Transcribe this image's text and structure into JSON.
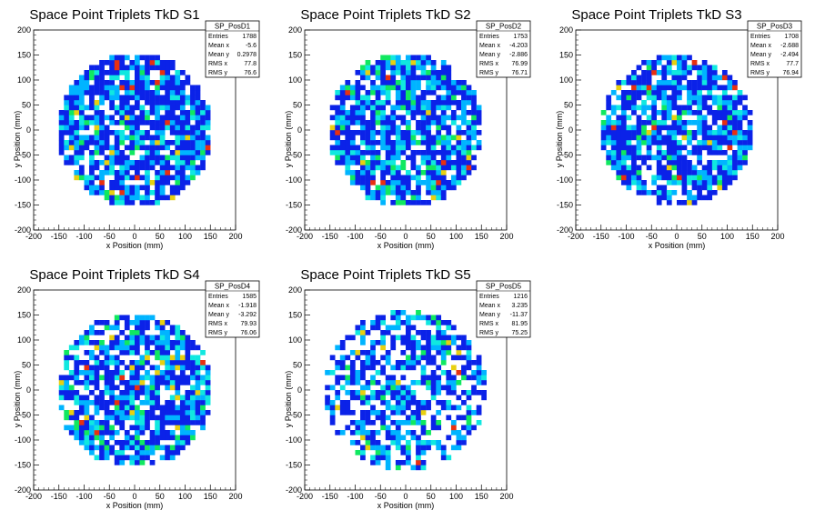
{
  "palette": [
    "#0b22e8",
    "#00b4ff",
    "#10e8e0",
    "#10e860",
    "#e8d010",
    "#e83010"
  ],
  "chart_data": [
    {
      "type": "heatmap",
      "title": "Space Point Triplets TkD S1",
      "xlabel": "x Position (mm)",
      "ylabel": "y Position (mm)",
      "xlim": [
        -200,
        200
      ],
      "ylim": [
        -200,
        200
      ],
      "xticks": [
        -200,
        -150,
        -100,
        -50,
        0,
        50,
        100,
        150,
        200
      ],
      "yticks": [
        -200,
        -150,
        -100,
        -50,
        0,
        50,
        100,
        150,
        200
      ],
      "bin_width_mm": 10,
      "region_radius_mm": 155,
      "fill_fraction": 0.82,
      "stats": {
        "name": "SP_PosD1",
        "rows": [
          {
            "label": "Entries",
            "value": "1788"
          },
          {
            "label": "Mean x",
            "value": "-5.6"
          },
          {
            "label": "Mean y",
            "value": "0.2978"
          },
          {
            "label": "RMS x",
            "value": "77.8"
          },
          {
            "label": "RMS y",
            "value": "76.6"
          }
        ]
      }
    },
    {
      "type": "heatmap",
      "title": "Space Point Triplets TkD S2",
      "xlabel": "x Position (mm)",
      "ylabel": "y Position (mm)",
      "xlim": [
        -200,
        200
      ],
      "ylim": [
        -200,
        200
      ],
      "xticks": [
        -200,
        -150,
        -100,
        -50,
        0,
        50,
        100,
        150,
        200
      ],
      "yticks": [
        -200,
        -150,
        -100,
        -50,
        0,
        50,
        100,
        150,
        200
      ],
      "bin_width_mm": 10,
      "region_radius_mm": 155,
      "fill_fraction": 0.82,
      "stats": {
        "name": "SP_PosD2",
        "rows": [
          {
            "label": "Entries",
            "value": "1753"
          },
          {
            "label": "Mean x",
            "value": "-4.203"
          },
          {
            "label": "Mean y",
            "value": "-2.886"
          },
          {
            "label": "RMS x",
            "value": "76.99"
          },
          {
            "label": "RMS y",
            "value": "76.71"
          }
        ]
      }
    },
    {
      "type": "heatmap",
      "title": "Space Point Triplets TkD S3",
      "xlabel": "x Position (mm)",
      "ylabel": "y Position (mm)",
      "xlim": [
        -200,
        200
      ],
      "ylim": [
        -200,
        200
      ],
      "xticks": [
        -200,
        -150,
        -100,
        -50,
        0,
        50,
        100,
        150,
        200
      ],
      "yticks": [
        -200,
        -150,
        -100,
        -50,
        0,
        50,
        100,
        150,
        200
      ],
      "bin_width_mm": 10,
      "region_radius_mm": 150,
      "fill_fraction": 0.8,
      "stats": {
        "name": "SP_PosD3",
        "rows": [
          {
            "label": "Entries",
            "value": "1708"
          },
          {
            "label": "Mean x",
            "value": "-2.688"
          },
          {
            "label": "Mean y",
            "value": "-2.494"
          },
          {
            "label": "RMS x",
            "value": "77.7"
          },
          {
            "label": "RMS y",
            "value": "76.94"
          }
        ]
      }
    },
    {
      "type": "heatmap",
      "title": "Space Point Triplets TkD S4",
      "xlabel": "x Position (mm)",
      "ylabel": "y Position (mm)",
      "xlim": [
        -200,
        200
      ],
      "ylim": [
        -200,
        200
      ],
      "xticks": [
        -200,
        -150,
        -100,
        -50,
        0,
        50,
        100,
        150,
        200
      ],
      "yticks": [
        -200,
        -150,
        -100,
        -50,
        0,
        50,
        100,
        150,
        200
      ],
      "bin_width_mm": 10,
      "region_radius_mm": 155,
      "fill_fraction": 0.78,
      "stats": {
        "name": "SP_PosD4",
        "rows": [
          {
            "label": "Entries",
            "value": "1585"
          },
          {
            "label": "Mean x",
            "value": "-1.918"
          },
          {
            "label": "Mean y",
            "value": "-3.292"
          },
          {
            "label": "RMS x",
            "value": "79.93"
          },
          {
            "label": "RMS y",
            "value": "76.06"
          }
        ]
      }
    },
    {
      "type": "heatmap",
      "title": "Space Point Triplets TkD S5",
      "xlabel": "x Position (mm)",
      "ylabel": "y Position (mm)",
      "xlim": [
        -200,
        200
      ],
      "ylim": [
        -200,
        200
      ],
      "xticks": [
        -200,
        -150,
        -100,
        -50,
        0,
        50,
        100,
        150,
        200
      ],
      "yticks": [
        -200,
        -150,
        -100,
        -50,
        0,
        50,
        100,
        150,
        200
      ],
      "bin_width_mm": 10,
      "region_radius_mm": 160,
      "fill_fraction": 0.62,
      "stats": {
        "name": "SP_PosD5",
        "rows": [
          {
            "label": "Entries",
            "value": "1216"
          },
          {
            "label": "Mean x",
            "value": "3.235"
          },
          {
            "label": "Mean y",
            "value": "-11.37"
          },
          {
            "label": "RMS x",
            "value": "81.95"
          },
          {
            "label": "RMS y",
            "value": "75.25"
          }
        ]
      }
    }
  ]
}
